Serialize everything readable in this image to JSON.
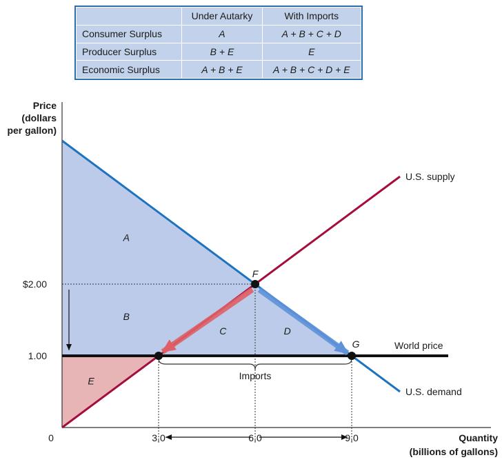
{
  "table": {
    "columns": [
      "",
      "Under Autarky",
      "With Imports"
    ],
    "rows": [
      {
        "label": "Consumer Surplus",
        "autarky": "A",
        "imports": "A + B + C + D"
      },
      {
        "label": "Producer Surplus",
        "autarky": "B + E",
        "imports": "E"
      },
      {
        "label": "Economic Surplus",
        "autarky": "A + B + E",
        "imports": "A + B + C + D + E"
      }
    ]
  },
  "chart_data": {
    "type": "line",
    "ylabel": [
      "Price",
      "(dollars",
      "per gallon)"
    ],
    "xlabel": [
      "Quantity",
      "(billions of gallons)"
    ],
    "origin_label": "0",
    "x_ticks": [
      "3.0",
      "6.0",
      "9.0"
    ],
    "y_ticks": [
      "$2.00",
      "1.00"
    ],
    "series": [
      {
        "name": "U.S. supply",
        "points": [
          [
            0,
            0
          ],
          [
            10.5,
            3.5
          ]
        ]
      },
      {
        "name": "U.S. demand",
        "points": [
          [
            0,
            4
          ],
          [
            10.5,
            0.5
          ]
        ]
      },
      {
        "name": "World price",
        "points": [
          [
            0,
            1
          ],
          [
            12,
            1
          ]
        ]
      }
    ],
    "points": [
      {
        "label": "F",
        "x": 6.0,
        "y": 2.0
      },
      {
        "label": "",
        "x": 3.0,
        "y": 1.0
      },
      {
        "label": "G",
        "x": 9.0,
        "y": 1.0
      }
    ],
    "regions": [
      "A",
      "B",
      "C",
      "D",
      "E"
    ],
    "annotations": [
      "Imports"
    ],
    "colors": {
      "supply": "#a50d3b",
      "demand": "#1e73be",
      "world": "#111111",
      "consumer_fill": "#bccbe9",
      "producer_fill": "#e7b5b6"
    }
  }
}
